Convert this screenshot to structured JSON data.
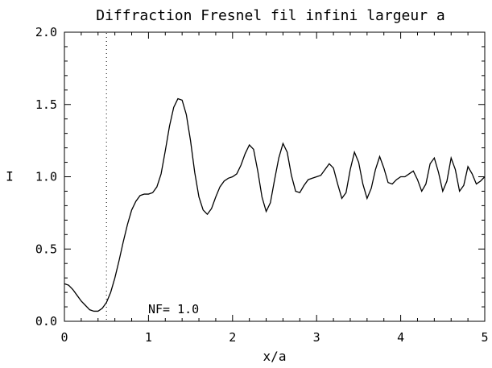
{
  "chart_data": {
    "type": "line",
    "title": "Diffraction Fresnel fil infini largeur a",
    "xlabel": "x/a",
    "ylabel": "I",
    "xlim": [
      0,
      5
    ],
    "ylim": [
      0,
      2
    ],
    "x_ticks": [
      0,
      1,
      2,
      3,
      4,
      5
    ],
    "x_tick_labels": [
      "0",
      "1",
      "2",
      "3",
      "4",
      "5"
    ],
    "y_ticks": [
      0,
      0.5,
      1,
      1.5,
      2
    ],
    "y_tick_labels": [
      "0.0",
      "0.5",
      "1.0",
      "1.5",
      "2.0"
    ],
    "annotation": "NF= 1.0",
    "reference_line_x": 0.5,
    "grid": false,
    "series": [
      {
        "x": [
          0,
          0.05,
          0.1,
          0.15,
          0.2,
          0.25,
          0.3,
          0.35,
          0.4,
          0.45,
          0.5,
          0.55,
          0.6,
          0.65,
          0.7,
          0.75,
          0.8,
          0.85,
          0.9,
          0.95,
          1.0,
          1.05,
          1.1,
          1.15,
          1.2,
          1.25,
          1.3,
          1.35,
          1.4,
          1.45,
          1.5,
          1.55,
          1.6,
          1.65,
          1.7,
          1.75,
          1.8,
          1.85,
          1.9,
          1.95,
          2.0,
          2.05,
          2.1,
          2.15,
          2.2,
          2.25,
          2.3,
          2.35,
          2.4,
          2.45,
          2.5,
          2.55,
          2.6,
          2.65,
          2.7,
          2.75,
          2.8,
          2.85,
          2.9,
          2.95,
          3.0,
          3.05,
          3.1,
          3.15,
          3.2,
          3.25,
          3.3,
          3.35,
          3.4,
          3.45,
          3.5,
          3.55,
          3.6,
          3.65,
          3.7,
          3.75,
          3.8,
          3.85,
          3.9,
          3.95,
          4.0,
          4.05,
          4.1,
          4.15,
          4.2,
          4.25,
          4.3,
          4.35,
          4.4,
          4.45,
          4.5,
          4.55,
          4.6,
          4.65,
          4.7,
          4.75,
          4.8,
          4.85,
          4.9,
          4.95,
          5.0
        ],
        "values": [
          0.26,
          0.25,
          0.22,
          0.18,
          0.14,
          0.11,
          0.08,
          0.07,
          0.07,
          0.09,
          0.13,
          0.2,
          0.3,
          0.42,
          0.55,
          0.67,
          0.77,
          0.83,
          0.87,
          0.88,
          0.88,
          0.89,
          0.93,
          1.02,
          1.18,
          1.35,
          1.48,
          1.54,
          1.53,
          1.43,
          1.25,
          1.03,
          0.86,
          0.77,
          0.74,
          0.78,
          0.86,
          0.93,
          0.97,
          0.99,
          1.0,
          1.02,
          1.08,
          1.16,
          1.22,
          1.19,
          1.04,
          0.86,
          0.76,
          0.82,
          0.98,
          1.13,
          1.23,
          1.17,
          1.01,
          0.9,
          0.89,
          0.94,
          0.98,
          0.99,
          1.0,
          1.01,
          1.05,
          1.09,
          1.06,
          0.95,
          0.85,
          0.89,
          1.05,
          1.17,
          1.1,
          0.95,
          0.85,
          0.92,
          1.05,
          1.14,
          1.06,
          0.96,
          0.95,
          0.98,
          1.0,
          1.0,
          1.02,
          1.04,
          0.98,
          0.9,
          0.95,
          1.09,
          1.13,
          1.03,
          0.9,
          0.97,
          1.13,
          1.05,
          0.9,
          0.94,
          1.07,
          1.02,
          0.95,
          0.97,
          1.0
        ]
      }
    ]
  }
}
